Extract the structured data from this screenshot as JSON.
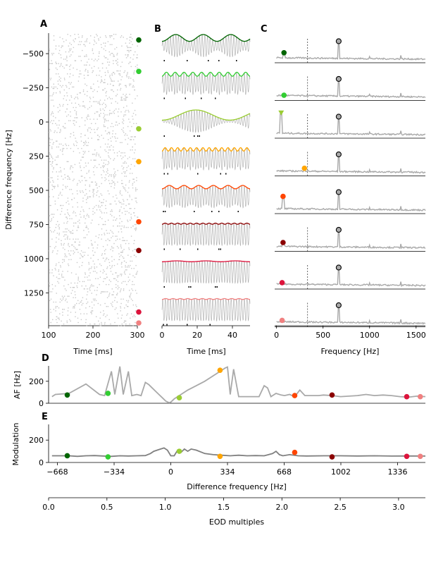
{
  "panel_labels": [
    "A",
    "B",
    "C",
    "D",
    "E"
  ],
  "colors": {
    "dark_green": "#006400",
    "lime_green": "#32cd32",
    "yellow_green": "#9acd32",
    "orange": "#ffa500",
    "orange_red": "#ff4500",
    "dark_red": "#8b0000",
    "crimson": "#dc143c",
    "light_coral": "#f08080",
    "trace_gray": "#a9a9a9",
    "spike_gray": "#c8c8c8"
  },
  "chart_data": [
    {
      "panel": "A",
      "type": "scatter",
      "description_of_marks": "raster of spike times per difference frequency",
      "xlabel": "Time [ms]",
      "ylabel": "Difference frequency [Hz]",
      "xlim": [
        100,
        300
      ],
      "ylim": [
        -650,
        1490
      ],
      "y_inverted": true,
      "xticks": [
        100,
        200,
        300
      ],
      "yticks": [
        -500,
        -250,
        0,
        250,
        500,
        750,
        1000,
        1250
      ],
      "ytick_labels": [
        "−500",
        "−250",
        "0",
        "250",
        "500",
        "750",
        "1000",
        "1250"
      ],
      "markers": [
        {
          "df": -600,
          "color": "#006400"
        },
        {
          "df": -370,
          "color": "#32cd32"
        },
        {
          "df": 50,
          "color": "#9acd32"
        },
        {
          "df": 290,
          "color": "#ffa500"
        },
        {
          "df": 730,
          "color": "#ff4500"
        },
        {
          "df": 940,
          "color": "#8b0000"
        },
        {
          "df": 1390,
          "color": "#dc143c"
        },
        {
          "df": 1470,
          "color": "#f08080"
        }
      ]
    },
    {
      "panel": "B",
      "type": "line",
      "xlabel": "Time [ms]",
      "xlim": [
        0,
        50
      ],
      "xticks": [
        0,
        20,
        40
      ],
      "rows": [
        {
          "color": "#006400",
          "beat_cycles": 3.2,
          "env_depth": 0.6,
          "spikes": [
            1,
            14,
            26,
            32,
            42
          ]
        },
        {
          "color": "#32cd32",
          "beat_cycles": 10,
          "env_depth": 0.35,
          "spikes": [
            1,
            13,
            22,
            30
          ]
        },
        {
          "color": "#9acd32",
          "beat_cycles": 1.3,
          "env_depth": 0.9,
          "spikes": [
            1,
            18,
            20,
            21
          ]
        },
        {
          "color": "#ffa500",
          "beat_cycles": 14,
          "env_depth": 0.3,
          "spikes": [
            1,
            3,
            20,
            33,
            36
          ]
        },
        {
          "color": "#ff4500",
          "beat_cycles": 6,
          "env_depth": 0.3,
          "spikes": [
            0.5,
            1.5,
            18,
            28,
            32,
            43
          ]
        },
        {
          "color": "#8b0000",
          "beat_cycles": 14,
          "env_depth": 0.1,
          "spikes": [
            1,
            10,
            20,
            32,
            33
          ]
        },
        {
          "color": "#dc143c",
          "beat_cycles": 3,
          "env_depth": 0.08,
          "spikes": [
            1,
            15,
            16,
            30,
            31
          ]
        },
        {
          "color": "#f08080",
          "beat_cycles": 12,
          "env_depth": 0.08,
          "spikes": [
            0.5,
            2.5,
            14,
            27
          ]
        }
      ]
    },
    {
      "panel": "C",
      "type": "line",
      "xlabel": "Frequency [Hz]",
      "xlim": [
        -20,
        1600
      ],
      "xticks": [
        0,
        500,
        1000,
        1500
      ],
      "vline_x": 334,
      "eod_peak_x": 668,
      "rows": [
        {
          "color": "#006400",
          "df": 80,
          "marker_y": 0.3,
          "vline": true
        },
        {
          "color": "#32cd32",
          "df": 80,
          "marker_y": 0.1,
          "vline": true
        },
        {
          "color": "#9acd32",
          "df": 50,
          "marker_y": 0.95,
          "vline": true,
          "marker": "triangle"
        },
        {
          "color": "#ffa500",
          "df": 300,
          "marker_y": 0.2,
          "vline": true
        },
        {
          "color": "#ff4500",
          "df": 70,
          "marker_y": 0.6,
          "vline": false
        },
        {
          "color": "#8b0000",
          "df": 70,
          "marker_y": 0.25,
          "vline": true
        },
        {
          "color": "#dc143c",
          "df": 60,
          "marker_y": 0.15,
          "vline": true
        },
        {
          "color": "#f08080",
          "df": 60,
          "marker_y": 0.15,
          "vline": true
        }
      ]
    },
    {
      "panel": "D",
      "type": "line",
      "ylabel": "AF [Hz]",
      "ylim": [
        0,
        340
      ],
      "yticks": [
        0,
        200
      ],
      "xlim": [
        -720,
        1500
      ],
      "series": [
        {
          "x": [
            -700,
            -680,
            -600,
            -500,
            -420,
            -390,
            -350,
            -330,
            -300,
            -280,
            -250,
            -230,
            -200,
            -175,
            -150,
            -130,
            -110,
            -90,
            -70,
            -50,
            -30,
            -10,
            0,
            20,
            40,
            60,
            80,
            100,
            150,
            200,
            250,
            300,
            320,
            334,
            350,
            370,
            400,
            440,
            480,
            520,
            550,
            570,
            590,
            620,
            650,
            670,
            700,
            730,
            760,
            790,
            830,
            870,
            900,
            950,
            1000,
            1050,
            1100,
            1150,
            1200,
            1250,
            1300,
            1350,
            1400,
            1450,
            1500
          ],
          "y": [
            60,
            80,
            90,
            175,
            80,
            70,
            290,
            80,
            335,
            80,
            290,
            70,
            80,
            70,
            190,
            170,
            140,
            110,
            80,
            50,
            20,
            5,
            10,
            40,
            60,
            80,
            100,
            120,
            160,
            200,
            250,
            300,
            320,
            330,
            80,
            310,
            60,
            60,
            60,
            60,
            160,
            140,
            60,
            90,
            75,
            70,
            80,
            60,
            120,
            70,
            70,
            70,
            75,
            70,
            60,
            65,
            70,
            80,
            70,
            75,
            70,
            60,
            55,
            65,
            60
          ]
        }
      ],
      "markers": [
        {
          "x": -610,
          "y": 75,
          "color": "#006400"
        },
        {
          "x": -370,
          "y": 90,
          "color": "#32cd32"
        },
        {
          "x": 50,
          "y": 50,
          "color": "#9acd32"
        },
        {
          "x": 290,
          "y": 300,
          "color": "#ffa500"
        },
        {
          "x": 730,
          "y": 70,
          "color": "#ff4500"
        },
        {
          "x": 950,
          "y": 75,
          "color": "#8b0000"
        },
        {
          "x": 1390,
          "y": 60,
          "color": "#dc143c"
        },
        {
          "x": 1470,
          "y": 60,
          "color": "#f08080"
        }
      ]
    },
    {
      "panel": "E",
      "type": "line",
      "ylabel": "Modulation",
      "ylim": [
        0,
        340
      ],
      "yticks": [
        0,
        200
      ],
      "xlim": [
        -720,
        1500
      ],
      "xlabel": "Difference frequency [Hz]",
      "xticks": [
        -668,
        -334,
        0,
        334,
        668,
        1002,
        1336
      ],
      "xtick_labels": [
        "−668",
        "−334",
        "0",
        "334",
        "668",
        "1002",
        "1336"
      ],
      "x2label": "EOD multiples",
      "x2ticks": [
        0.0,
        0.5,
        1.0,
        1.5,
        2.0,
        2.5,
        3.0
      ],
      "x2tick_labels": [
        "0.0",
        "0.5",
        "1.0",
        "1.5",
        "2.0",
        "2.5",
        "3.0"
      ],
      "series": [
        {
          "x": [
            -700,
            -650,
            -600,
            -550,
            -500,
            -450,
            -400,
            -350,
            -300,
            -250,
            -200,
            -150,
            -120,
            -100,
            -80,
            -60,
            -40,
            -20,
            0,
            20,
            40,
            60,
            80,
            100,
            120,
            150,
            200,
            250,
            300,
            350,
            400,
            450,
            500,
            550,
            600,
            620,
            640,
            660,
            700,
            750,
            800,
            900,
            1000,
            1100,
            1200,
            1300,
            1400,
            1500
          ],
          "y": [
            60,
            60,
            60,
            55,
            60,
            62,
            58,
            55,
            60,
            58,
            60,
            62,
            80,
            100,
            110,
            120,
            130,
            110,
            60,
            60,
            110,
            90,
            120,
            100,
            120,
            110,
            80,
            70,
            65,
            60,
            65,
            60,
            62,
            60,
            80,
            100,
            70,
            60,
            70,
            60,
            58,
            60,
            60,
            58,
            60,
            57,
            58,
            57
          ]
        }
      ],
      "markers": [
        {
          "x": -610,
          "y": 60,
          "color": "#006400"
        },
        {
          "x": -370,
          "y": 50,
          "color": "#32cd32"
        },
        {
          "x": 50,
          "y": 100,
          "color": "#9acd32"
        },
        {
          "x": 290,
          "y": 55,
          "color": "#ffa500"
        },
        {
          "x": 730,
          "y": 90,
          "color": "#ff4500"
        },
        {
          "x": 950,
          "y": 50,
          "color": "#8b0000"
        },
        {
          "x": 1390,
          "y": 55,
          "color": "#dc143c"
        },
        {
          "x": 1470,
          "y": 55,
          "color": "#f08080"
        }
      ]
    }
  ]
}
